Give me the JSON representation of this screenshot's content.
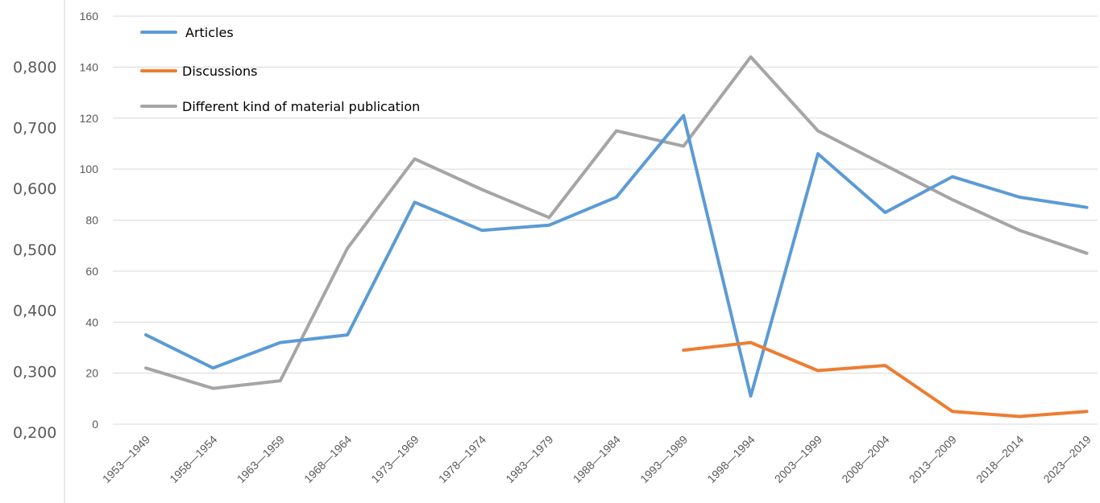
{
  "chart_data": {
    "type": "line",
    "categories": [
      "1953—1949",
      "1958—1954",
      "1963—1959",
      "1968—1964",
      "1973—1969",
      "1978—1974",
      "1983—1979",
      "1988—1984",
      "1993—1989",
      "1998—1994",
      "2003—1999",
      "2008—2004",
      "2013—2009",
      "2018—2014",
      "2023—2019"
    ],
    "left_axis": {
      "ticks": [
        "0,200",
        "0,300",
        "0,400",
        "0,500",
        "0,600",
        "0,700",
        "0,800"
      ]
    },
    "right_axis": {
      "ticks": [
        "0",
        "20",
        "40",
        "60",
        "80",
        "100",
        "120",
        "140",
        "160"
      ],
      "ylim": [
        0,
        160
      ]
    },
    "series": [
      {
        "name": "Articles",
        "color": "#5b9bd5",
        "values": [
          35,
          22,
          32,
          35,
          87,
          76,
          78,
          89,
          121,
          11,
          106,
          83,
          97,
          89,
          85
        ]
      },
      {
        "name": "Discussions",
        "color": "#ed7d31",
        "values": [
          null,
          null,
          null,
          null,
          null,
          null,
          null,
          null,
          29,
          32,
          21,
          23,
          5,
          3,
          5
        ]
      },
      {
        "name": "Different kind of material publication",
        "color": "#a5a5a5",
        "values": [
          22,
          14,
          17,
          69,
          104,
          92,
          81,
          115,
          109,
          144,
          115,
          null,
          88,
          76,
          67
        ]
      }
    ],
    "legend_position": "top-left",
    "grid": true
  }
}
